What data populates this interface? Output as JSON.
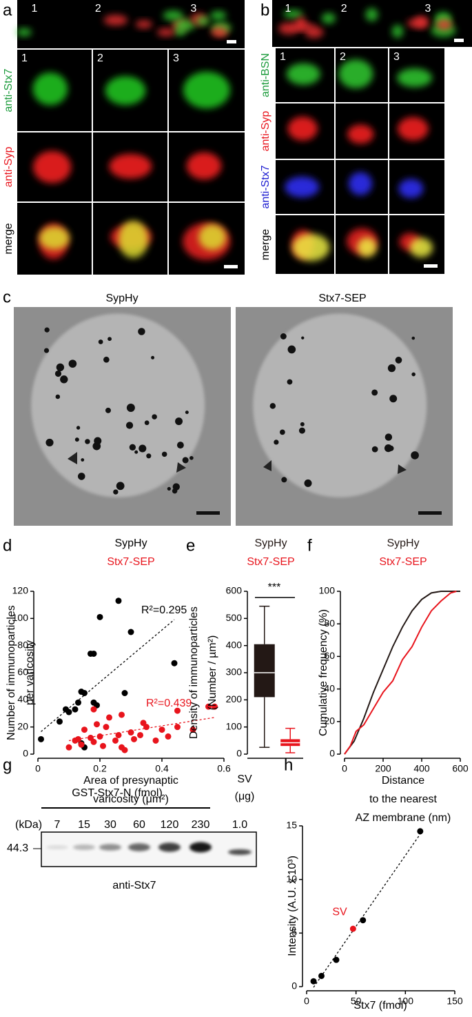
{
  "panel_labels": [
    "a",
    "b",
    "c",
    "d",
    "e",
    "f",
    "g",
    "h"
  ],
  "panel_a": {
    "overview_numbers": [
      "1",
      "2",
      "3"
    ],
    "column_numbers": [
      "1",
      "2",
      "3"
    ],
    "row_labels": [
      "anti-Stx7",
      "anti-Syp",
      "merge"
    ]
  },
  "panel_b": {
    "overview_numbers": [
      "1",
      "2",
      "3"
    ],
    "column_numbers": [
      "1",
      "2",
      "3"
    ],
    "row_labels": [
      "anti-BSN",
      "anti-Syp",
      "anti-Stx7",
      "merge"
    ]
  },
  "panel_c": {
    "titles": [
      "SypHy",
      "Stx7-SEP"
    ]
  },
  "panel_g": {
    "title": "GST-Stx7-N (fmol)",
    "unit_label": "(kDa)",
    "lanes": [
      "7",
      "15",
      "30",
      "60",
      "120",
      "230"
    ],
    "sv_label": "SV",
    "sv_unit": "(μg)",
    "sv_lane": "1.0",
    "marker": "44.3",
    "antibody": "anti-Stx7"
  },
  "chart_data": [
    {
      "type": "scatter",
      "ylabel": [
        "Number of immunoparticles",
        "per varicosity"
      ],
      "xlabel": [
        "Area of presynaptic",
        "varicosity (μm²)"
      ],
      "xlim": [
        0,
        0.6
      ],
      "xticks": [
        0,
        0.2,
        0.4,
        0.6
      ],
      "ylim": [
        0,
        120
      ],
      "yticks": [
        0,
        20,
        40,
        60,
        80,
        100,
        120
      ],
      "trendline": true,
      "series": [
        {
          "name": "SypHy",
          "color": "#000000",
          "annotation": "R²=0.295",
          "x": [
            0.01,
            0.07,
            0.09,
            0.1,
            0.12,
            0.13,
            0.14,
            0.15,
            0.17,
            0.18,
            0.2,
            0.26,
            0.3,
            0.28,
            0.44,
            0.18,
            0.14,
            0.15,
            0.19
          ],
          "y": [
            11,
            24,
            33,
            31,
            33,
            38,
            46,
            45,
            74,
            74,
            101,
            113,
            90,
            45,
            67,
            38,
            8,
            5,
            36
          ]
        },
        {
          "name": "Stx7-SEP",
          "color": "#e8141c",
          "annotation": "R²=0.439",
          "x": [
            0.1,
            0.12,
            0.13,
            0.14,
            0.15,
            0.17,
            0.18,
            0.19,
            0.2,
            0.21,
            0.22,
            0.23,
            0.25,
            0.26,
            0.27,
            0.28,
            0.3,
            0.31,
            0.33,
            0.34,
            0.35,
            0.38,
            0.4,
            0.42,
            0.45,
            0.5,
            0.55,
            0.57,
            0.45,
            0.18,
            0.27
          ],
          "y": [
            5,
            10,
            11,
            7,
            18,
            12,
            9,
            22,
            13,
            6,
            20,
            27,
            10,
            14,
            5,
            3,
            16,
            11,
            14,
            23,
            20,
            10,
            18,
            13,
            20,
            18,
            35,
            35,
            32,
            33,
            29
          ]
        }
      ]
    },
    {
      "type": "box",
      "ylabel": [
        "Density of immunoparticles",
        "(Number / µm²)"
      ],
      "ylim": [
        0,
        600
      ],
      "yticks": [
        0,
        100,
        200,
        300,
        400,
        500,
        600
      ],
      "annotation": "***",
      "series": [
        {
          "name": "SypHy",
          "color": "#231815",
          "whisker_low": 25,
          "q1": 210,
          "median": 300,
          "q3": 405,
          "whisker_high": 545
        },
        {
          "name": "Stx7-SEP",
          "color": "#e8141c",
          "whisker_low": 5,
          "q1": 30,
          "median": 42,
          "q3": 55,
          "whisker_high": 95
        }
      ]
    },
    {
      "type": "line",
      "ylabel": [
        "Cumulative frequency (%)"
      ],
      "xlabel": [
        "Distance",
        "to the nearest",
        "AZ membrane (nm)"
      ],
      "xlim": [
        0,
        600
      ],
      "xticks": [
        0,
        200,
        400,
        600
      ],
      "ylim": [
        0,
        100
      ],
      "yticks": [
        0,
        20,
        40,
        60,
        80,
        100
      ],
      "series": [
        {
          "name": "SypHy",
          "color": "#231815",
          "x": [
            0,
            50,
            100,
            150,
            200,
            250,
            300,
            350,
            400,
            450,
            500,
            550,
            600
          ],
          "y": [
            0,
            8,
            22,
            38,
            52,
            66,
            78,
            88,
            95,
            99,
            100,
            100,
            100
          ]
        },
        {
          "name": "Stx7-SEP",
          "color": "#e8141c",
          "x": [
            0,
            30,
            60,
            100,
            150,
            200,
            250,
            300,
            350,
            400,
            450,
            500,
            550,
            580
          ],
          "y": [
            0,
            5,
            14,
            18,
            28,
            38,
            45,
            58,
            66,
            78,
            88,
            94,
            99,
            100
          ]
        }
      ]
    },
    {
      "type": "scatter",
      "ylabel": [
        "Intensity (A.U. x 10³)"
      ],
      "xlabel": [
        "Stx7 (fmol)"
      ],
      "xlim": [
        0,
        150
      ],
      "xticks": [
        0,
        50,
        100,
        150
      ],
      "ylim": [
        0,
        15
      ],
      "yticks": [
        0,
        5,
        10,
        15
      ],
      "series": [
        {
          "color": "#000000",
          "trendline": true,
          "x": [
            7,
            15,
            30,
            57,
            115
          ],
          "y": [
            0.5,
            1.0,
            2.5,
            6.2,
            14.5
          ]
        },
        {
          "name": "SV",
          "color": "#e8141c",
          "x": [
            47
          ],
          "y": [
            5.4
          ]
        }
      ]
    }
  ]
}
